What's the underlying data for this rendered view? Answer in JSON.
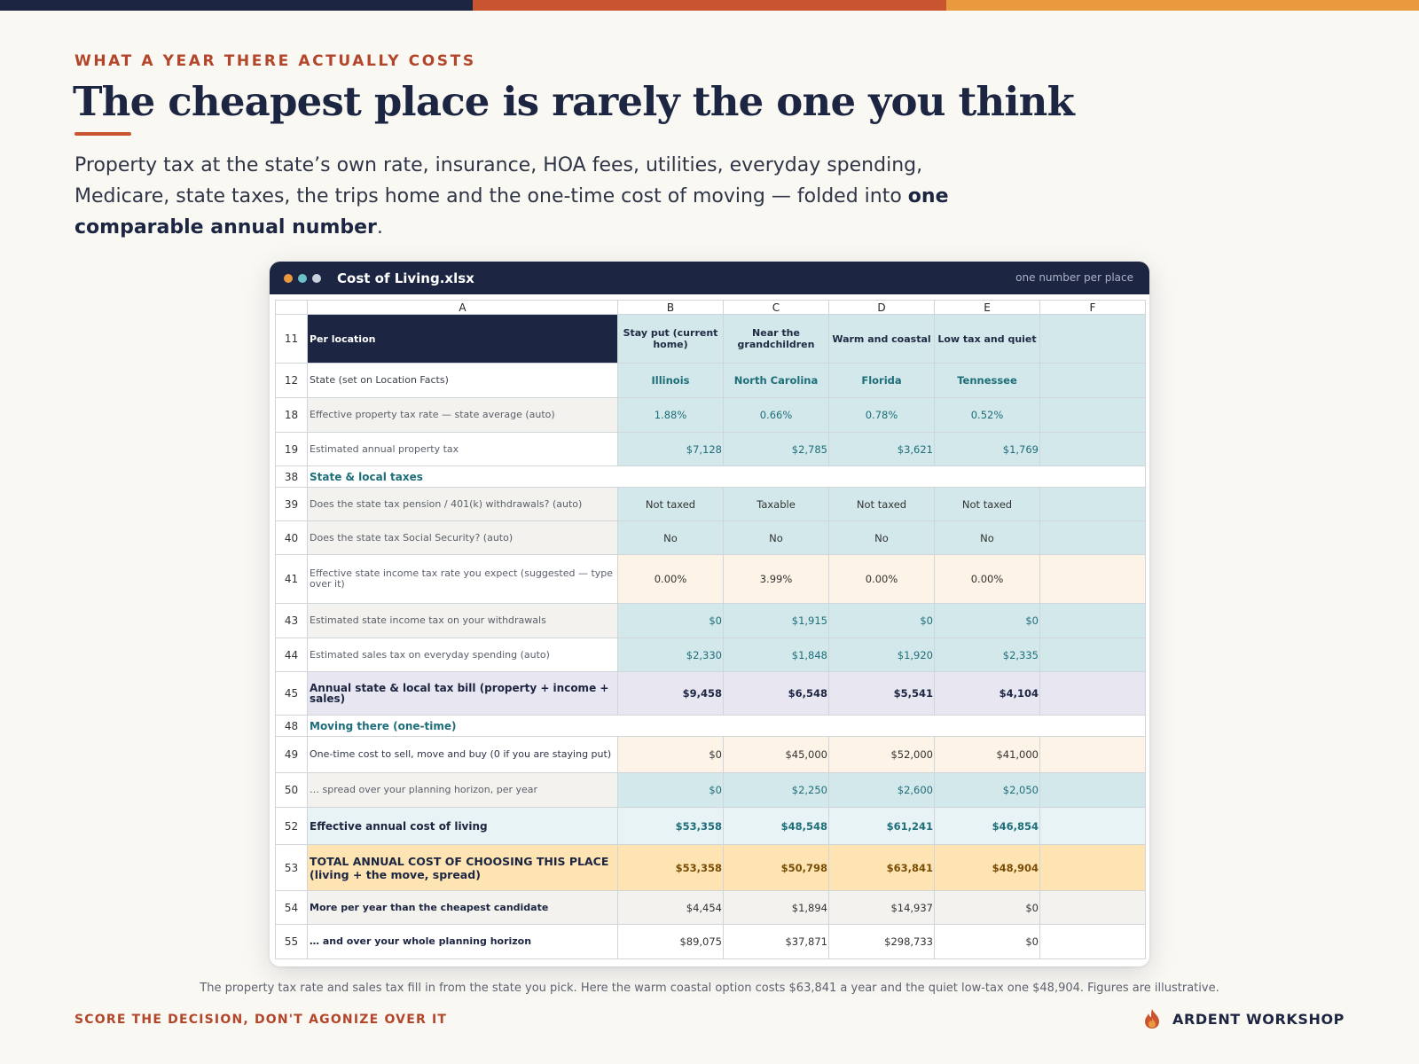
{
  "colors": {
    "brand_navy": "#1c2541",
    "accent_orange": "#c95430",
    "accent_amber": "#e99a3f",
    "teal": "#1e6e7a"
  },
  "topbar": [
    "#1c2541",
    "#c95430",
    "#e99a3f"
  ],
  "eyebrow": "WHAT A YEAR THERE ACTUALLY COSTS",
  "headline": "The cheapest place is rarely the one you think",
  "subtitle": {
    "text": "Property tax at the state’s own rate, insurance, HOA fees, utilities, everyday spending, Medicare, state taxes, the trips home and the one-time cost of moving — folded into ",
    "bold": "one comparable annual number",
    "end": "."
  },
  "window": {
    "title": "Cost of Living.xlsx",
    "tag": "one number per place",
    "dots": [
      "#e99a3f",
      "#6cc1c9",
      "#c9d0dc"
    ]
  },
  "sheet": {
    "col_letters": [
      "A",
      "B",
      "C",
      "D",
      "E",
      "F"
    ],
    "header": {
      "num": "11",
      "label": "Per location",
      "places": [
        "Stay put (current home)",
        "Near the grandchildren",
        "Warm and coastal",
        "Low tax and quiet",
        ""
      ]
    },
    "rows": [
      {
        "num": "12",
        "label": "State  (set on Location Facts)",
        "values": [
          "Illinois",
          "North Carolina",
          "Florida",
          "Tennessee",
          ""
        ]
      },
      {
        "num": "18",
        "label": "Effective property tax rate — state average  (auto)",
        "values": [
          "1.88%",
          "0.66%",
          "0.78%",
          "0.52%",
          ""
        ]
      },
      {
        "num": "19",
        "label": "Estimated annual property tax",
        "values": [
          "$7,128",
          "$2,785",
          "$3,621",
          "$1,769",
          ""
        ]
      },
      {
        "num": "38",
        "label": "State & local taxes",
        "values": []
      },
      {
        "num": "39",
        "label": "Does the state tax pension / 401(k) withdrawals?  (auto)",
        "values": [
          "Not taxed",
          "Taxable",
          "Not taxed",
          "Not taxed",
          ""
        ]
      },
      {
        "num": "40",
        "label": "Does the state tax Social Security?  (auto)",
        "values": [
          "No",
          "No",
          "No",
          "No",
          ""
        ]
      },
      {
        "num": "41",
        "label": "Effective state income tax rate you expect  (suggested — type over it)",
        "values": [
          "0.00%",
          "3.99%",
          "0.00%",
          "0.00%",
          ""
        ]
      },
      {
        "num": "43",
        "label": "Estimated state income tax on your withdrawals",
        "values": [
          "$0",
          "$1,915",
          "$0",
          "$0",
          ""
        ]
      },
      {
        "num": "44",
        "label": "Estimated sales tax on everyday spending  (auto)",
        "values": [
          "$2,330",
          "$1,848",
          "$1,920",
          "$2,335",
          ""
        ]
      },
      {
        "num": "45",
        "label": "Annual state & local tax bill  (property + income + sales)",
        "values": [
          "$9,458",
          "$6,548",
          "$5,541",
          "$4,104",
          ""
        ]
      },
      {
        "num": "48",
        "label": "Moving there (one-time)",
        "values": []
      },
      {
        "num": "49",
        "label": "One-time cost to sell, move and buy  (0 if you are staying put)",
        "values": [
          "$0",
          "$45,000",
          "$52,000",
          "$41,000",
          ""
        ]
      },
      {
        "num": "50",
        "label": "… spread over your planning horizon, per year",
        "values": [
          "$0",
          "$2,250",
          "$2,600",
          "$2,050",
          ""
        ]
      },
      {
        "num": "52",
        "label": "Effective annual cost of living",
        "values": [
          "$53,358",
          "$48,548",
          "$61,241",
          "$46,854",
          ""
        ]
      },
      {
        "num": "53",
        "label": "TOTAL ANNUAL COST OF CHOOSING THIS PLACE (living + the move, spread)",
        "values": [
          "$53,358",
          "$50,798",
          "$63,841",
          "$48,904",
          ""
        ]
      },
      {
        "num": "54",
        "label": "More per year than the cheapest candidate",
        "values": [
          "$4,454",
          "$1,894",
          "$14,937",
          "$0",
          ""
        ]
      },
      {
        "num": "55",
        "label": "… and over your whole planning horizon",
        "values": [
          "$89,075",
          "$37,871",
          "$298,733",
          "$0",
          ""
        ]
      }
    ]
  },
  "caption": "The property tax rate and sales tax fill in from the state you pick. Here the warm coastal option costs $63,841 a year and the quiet low-tax one $48,904. Figures are illustrative.",
  "footer_left": "SCORE THE DECISION, DON'T AGONIZE OVER IT",
  "brand": {
    "name": "ARDENT WORKSHOP",
    "icon": "flame-icon"
  }
}
